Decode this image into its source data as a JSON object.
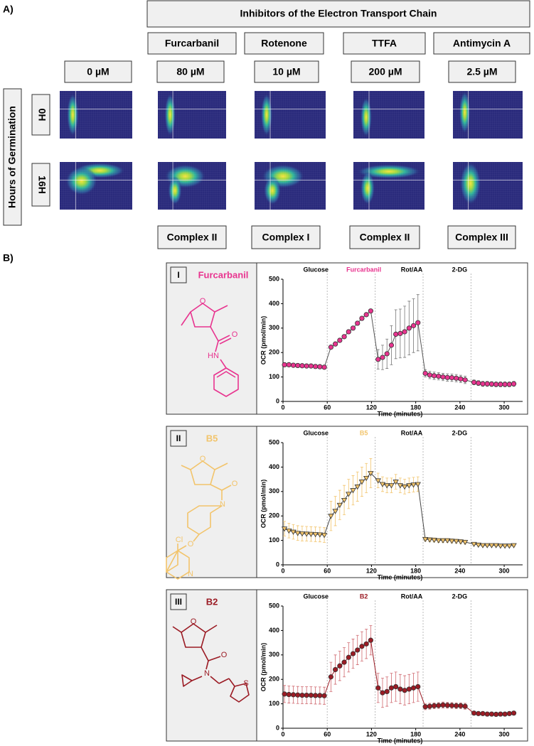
{
  "panel_a": {
    "label": "A)",
    "header": "Inhibitors of the Electron Transport Chain",
    "inhibitors": [
      "Furcarbanil",
      "Rotenone",
      "TTFA",
      "Antimycin A"
    ],
    "concentrations": [
      "0 µM",
      "80 µM",
      "10 µM",
      "200 µM",
      "2.5 µM"
    ],
    "y_title": "Hours of Germination",
    "timepoints": [
      "0H",
      "16H"
    ],
    "targets": [
      "Complex II",
      "Complex I",
      "Complex II",
      "Complex III"
    ]
  },
  "panel_b": {
    "label": "B)",
    "compounds": [
      {
        "numeral": "I",
        "name": "Furcarbanil",
        "atoms": [
          "O",
          "O",
          "HN"
        ]
      },
      {
        "numeral": "II",
        "name": "B5",
        "atoms": [
          "O",
          "O",
          "N",
          "Cl",
          "O",
          "N"
        ]
      },
      {
        "numeral": "III",
        "name": "B2",
        "atoms": [
          "O",
          "O",
          "N",
          "S"
        ]
      }
    ]
  },
  "chart_data": [
    {
      "type": "line",
      "x_label": "Time (minutes)",
      "y_label": "OCR (pmol/min)",
      "xlim": [
        0,
        325
      ],
      "ylim": [
        0,
        500
      ],
      "xticks": [
        0,
        60,
        120,
        180,
        240,
        300
      ],
      "yticks": [
        0,
        100,
        200,
        300,
        400,
        500
      ],
      "injections": [
        {
          "x": 60,
          "label": "Glucose",
          "color": "#000000"
        },
        {
          "x": 125,
          "label": "Furcarbanil",
          "color": "#e8348f"
        },
        {
          "x": 190,
          "label": "Rot/AA",
          "color": "#000000"
        },
        {
          "x": 255,
          "label": "2-DG",
          "color": "#000000"
        }
      ],
      "x": [
        2,
        8,
        14,
        20,
        26,
        32,
        38,
        44,
        50,
        56,
        65,
        71,
        77,
        83,
        89,
        95,
        101,
        107,
        113,
        119,
        129,
        135,
        141,
        147,
        153,
        159,
        165,
        171,
        177,
        183,
        193,
        199,
        205,
        211,
        217,
        223,
        229,
        235,
        241,
        247,
        259,
        265,
        271,
        277,
        283,
        289,
        295,
        301,
        307,
        313
      ],
      "series": [
        {
          "color": "#e8348f",
          "line_color": "#555555",
          "error_color": "#777777",
          "marker": "circle",
          "values": [
            150,
            150,
            148,
            147,
            146,
            145,
            145,
            143,
            142,
            140,
            222,
            235,
            250,
            265,
            285,
            300,
            320,
            340,
            355,
            370,
            172,
            180,
            195,
            230,
            275,
            278,
            285,
            300,
            310,
            322,
            115,
            108,
            105,
            103,
            100,
            98,
            97,
            95,
            92,
            88,
            78,
            75,
            72,
            72,
            71,
            70,
            70,
            70,
            70,
            72
          ],
          "errors": [
            8,
            8,
            8,
            8,
            8,
            8,
            8,
            8,
            8,
            8,
            8,
            8,
            8,
            8,
            8,
            8,
            8,
            8,
            8,
            8,
            40,
            50,
            60,
            80,
            100,
            100,
            105,
            110,
            110,
            115,
            15,
            15,
            15,
            15,
            15,
            15,
            15,
            15,
            15,
            15,
            10,
            10,
            10,
            10,
            10,
            10,
            10,
            10,
            10,
            10
          ]
        }
      ]
    },
    {
      "type": "line",
      "x_label": "Time (minutes)",
      "y_label": "OCR (pmol/min)",
      "xlim": [
        0,
        325
      ],
      "ylim": [
        0,
        500
      ],
      "xticks": [
        0,
        60,
        120,
        180,
        240,
        300
      ],
      "yticks": [
        0,
        100,
        200,
        300,
        400,
        500
      ],
      "injections": [
        {
          "x": 60,
          "label": "Glucose",
          "color": "#000000"
        },
        {
          "x": 125,
          "label": "B5",
          "color": "#f2c46b"
        },
        {
          "x": 190,
          "label": "Rot/AA",
          "color": "#000000"
        },
        {
          "x": 255,
          "label": "2-DG",
          "color": "#000000"
        }
      ],
      "x": [
        2,
        8,
        14,
        20,
        26,
        32,
        38,
        44,
        50,
        56,
        65,
        71,
        77,
        83,
        89,
        95,
        101,
        107,
        113,
        119,
        129,
        135,
        141,
        147,
        153,
        159,
        165,
        171,
        177,
        183,
        193,
        199,
        205,
        211,
        217,
        223,
        229,
        235,
        241,
        247,
        259,
        265,
        271,
        277,
        283,
        289,
        295,
        301,
        307,
        313
      ],
      "series": [
        {
          "color": "#f2c46b",
          "line_color": "#444444",
          "error_color": "#f2c46b",
          "marker": "triangle-down",
          "values": [
            148,
            140,
            135,
            130,
            128,
            127,
            126,
            125,
            124,
            122,
            200,
            220,
            245,
            265,
            290,
            305,
            320,
            340,
            355,
            375,
            345,
            330,
            325,
            325,
            340,
            325,
            320,
            325,
            328,
            330,
            105,
            103,
            102,
            100,
            100,
            100,
            98,
            97,
            95,
            93,
            85,
            82,
            80,
            80,
            80,
            80,
            78,
            78,
            78,
            80
          ],
          "errors": [
            30,
            30,
            30,
            30,
            30,
            30,
            30,
            30,
            30,
            30,
            60,
            60,
            60,
            60,
            60,
            60,
            60,
            60,
            60,
            60,
            30,
            30,
            30,
            30,
            30,
            30,
            30,
            30,
            30,
            30,
            8,
            8,
            8,
            8,
            8,
            8,
            8,
            8,
            8,
            8,
            5,
            5,
            5,
            5,
            5,
            5,
            5,
            5,
            5,
            5
          ]
        }
      ]
    },
    {
      "type": "line",
      "x_label": "Time (minutes)",
      "y_label": "OCR (pmol/min)",
      "xlim": [
        0,
        325
      ],
      "ylim": [
        0,
        500
      ],
      "xticks": [
        0,
        60,
        120,
        180,
        240,
        300
      ],
      "yticks": [
        0,
        100,
        200,
        300,
        400,
        500
      ],
      "injections": [
        {
          "x": 60,
          "label": "Glucose",
          "color": "#000000"
        },
        {
          "x": 125,
          "label": "B2",
          "color": "#9b1b24"
        },
        {
          "x": 190,
          "label": "Rot/AA",
          "color": "#000000"
        },
        {
          "x": 255,
          "label": "2-DG",
          "color": "#000000"
        }
      ],
      "x": [
        2,
        8,
        14,
        20,
        26,
        32,
        38,
        44,
        50,
        56,
        65,
        71,
        77,
        83,
        89,
        95,
        101,
        107,
        113,
        119,
        129,
        135,
        141,
        147,
        153,
        159,
        165,
        171,
        177,
        183,
        193,
        199,
        205,
        211,
        217,
        223,
        229,
        235,
        241,
        247,
        259,
        265,
        271,
        277,
        283,
        289,
        295,
        301,
        307,
        313
      ],
      "series": [
        {
          "color": "#9b1b24",
          "line_color": "#9b1b24",
          "error_color": "#d06a70",
          "marker": "circle",
          "values": [
            140,
            138,
            137,
            136,
            135,
            135,
            135,
            134,
            134,
            133,
            210,
            240,
            255,
            270,
            290,
            305,
            320,
            335,
            345,
            360,
            165,
            145,
            150,
            165,
            170,
            160,
            155,
            160,
            165,
            170,
            88,
            90,
            92,
            93,
            95,
            94,
            93,
            92,
            92,
            90,
            62,
            60,
            60,
            58,
            58,
            57,
            58,
            58,
            60,
            62
          ],
          "errors": [
            35,
            35,
            35,
            35,
            35,
            35,
            35,
            35,
            35,
            35,
            60,
            60,
            60,
            60,
            60,
            60,
            60,
            60,
            60,
            60,
            60,
            60,
            60,
            60,
            60,
            60,
            60,
            60,
            60,
            60,
            12,
            12,
            12,
            12,
            12,
            12,
            12,
            12,
            12,
            12,
            8,
            8,
            8,
            8,
            8,
            8,
            8,
            8,
            8,
            8
          ]
        }
      ]
    }
  ]
}
